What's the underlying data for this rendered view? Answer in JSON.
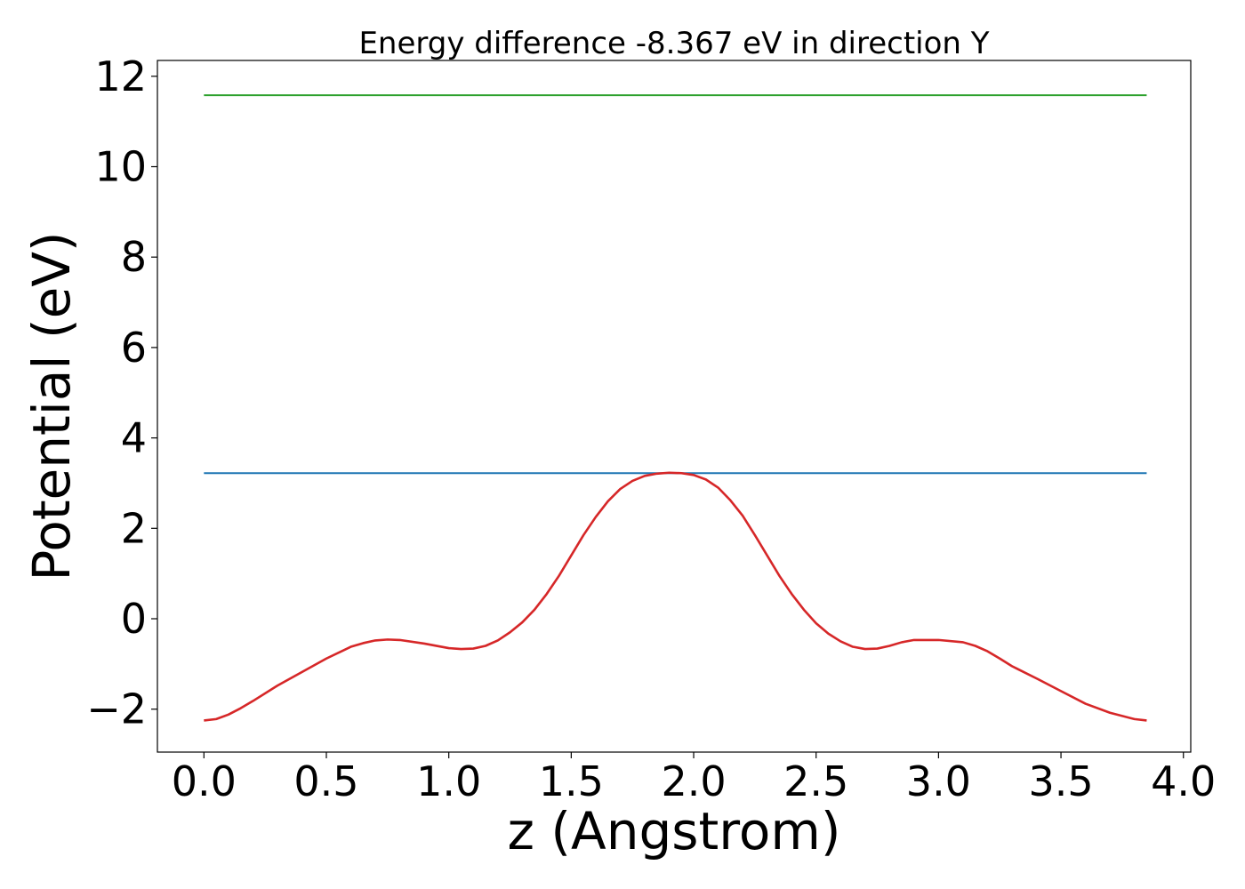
{
  "chart_data": {
    "type": "line",
    "title": "Energy difference -8.367 eV in direction Y",
    "xlabel": "z (Angstrom)",
    "ylabel": "Potential (eV)",
    "xlim": [
      -0.19,
      4.03
    ],
    "ylim": [
      -2.95,
      12.35
    ],
    "xticks": [
      0.0,
      0.5,
      1.0,
      1.5,
      2.0,
      2.5,
      3.0,
      3.5,
      4.0
    ],
    "xtick_labels": [
      "0.0",
      "0.5",
      "1.0",
      "1.5",
      "2.0",
      "2.5",
      "3.0",
      "3.5",
      "4.0"
    ],
    "yticks": [
      -2,
      0,
      2,
      4,
      6,
      8,
      10,
      12
    ],
    "ytick_labels": [
      "−2",
      "0",
      "2",
      "4",
      "6",
      "8",
      "10",
      "12"
    ],
    "grid": false,
    "series": [
      {
        "color": "#2ca02c",
        "x": [
          0.0,
          3.85
        ],
        "y": [
          11.58,
          11.58
        ]
      },
      {
        "color": "#1f77b4",
        "x": [
          0.0,
          3.85
        ],
        "y": [
          3.22,
          3.22
        ]
      },
      {
        "color": "#d62728",
        "x": [
          0.0,
          0.05,
          0.1,
          0.15,
          0.2,
          0.3,
          0.4,
          0.5,
          0.6,
          0.65,
          0.7,
          0.75,
          0.8,
          0.9,
          1.0,
          1.05,
          1.1,
          1.15,
          1.2,
          1.25,
          1.3,
          1.35,
          1.4,
          1.45,
          1.5,
          1.55,
          1.6,
          1.65,
          1.7,
          1.75,
          1.8,
          1.85,
          1.9,
          1.95,
          2.0,
          2.05,
          2.1,
          2.15,
          2.2,
          2.25,
          2.3,
          2.35,
          2.4,
          2.45,
          2.5,
          2.55,
          2.6,
          2.65,
          2.7,
          2.75,
          2.8,
          2.85,
          2.9,
          3.0,
          3.1,
          3.15,
          3.2,
          3.25,
          3.3,
          3.4,
          3.5,
          3.6,
          3.7,
          3.8,
          3.85
        ],
        "y": [
          -2.25,
          -2.22,
          -2.12,
          -1.98,
          -1.82,
          -1.48,
          -1.18,
          -0.88,
          -0.62,
          -0.54,
          -0.48,
          -0.46,
          -0.47,
          -0.55,
          -0.65,
          -0.67,
          -0.66,
          -0.6,
          -0.48,
          -0.3,
          -0.08,
          0.2,
          0.55,
          0.95,
          1.4,
          1.85,
          2.25,
          2.6,
          2.87,
          3.05,
          3.16,
          3.21,
          3.23,
          3.22,
          3.18,
          3.08,
          2.9,
          2.62,
          2.28,
          1.85,
          1.4,
          0.95,
          0.55,
          0.2,
          -0.1,
          -0.33,
          -0.5,
          -0.62,
          -0.67,
          -0.66,
          -0.6,
          -0.52,
          -0.47,
          -0.47,
          -0.52,
          -0.6,
          -0.72,
          -0.88,
          -1.05,
          -1.32,
          -1.6,
          -1.88,
          -2.08,
          -2.22,
          -2.25
        ]
      }
    ]
  }
}
